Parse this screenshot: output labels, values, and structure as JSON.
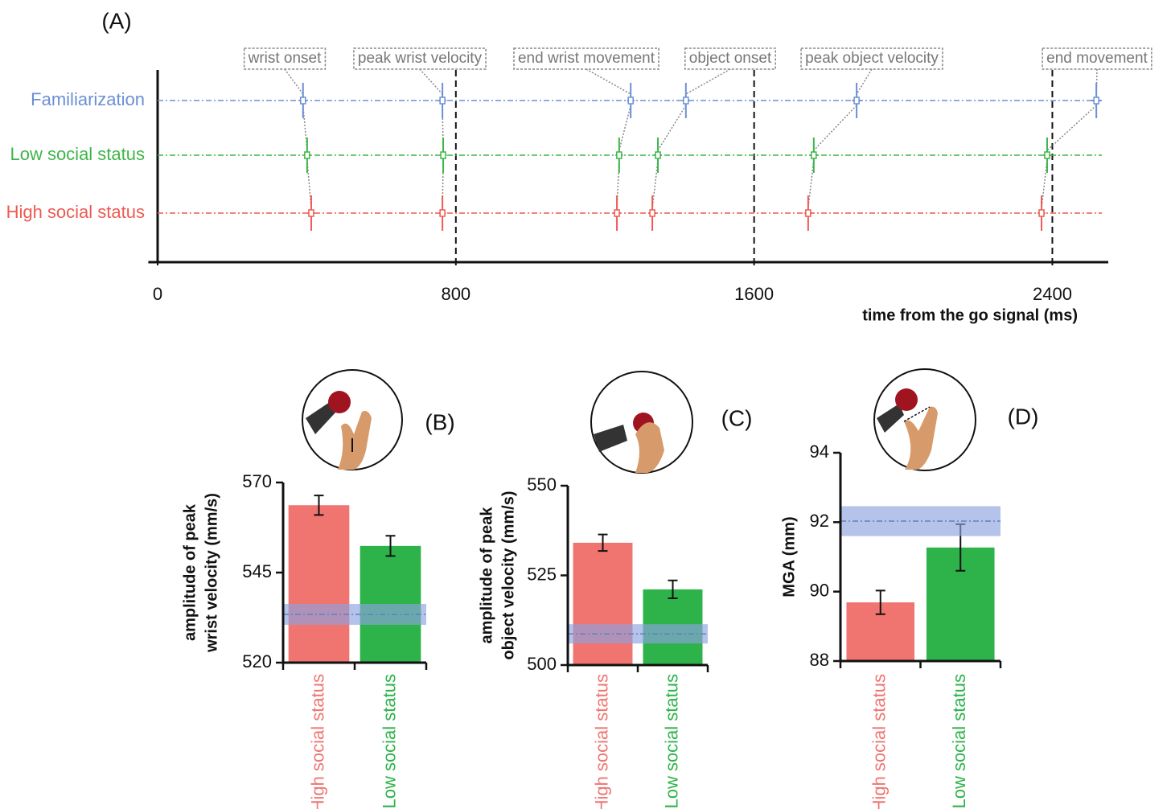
{
  "chart_data": [
    {
      "type": "timeline",
      "panel_label": "(A)",
      "events": [
        "wrist onset",
        "peak wrist velocity",
        "end wrist movement",
        "object onset",
        "peak object velocity",
        "end movement"
      ],
      "series": [
        {
          "name": "Familiarization",
          "color": "#6b8fd4",
          "values": [
            390,
            764,
            1269,
            1417,
            1875,
            2518
          ],
          "errors": [
            10,
            10,
            10,
            10,
            12,
            14
          ]
        },
        {
          "name": "Low social status",
          "color": "#3db548",
          "values": [
            401,
            766,
            1238,
            1342,
            1760,
            2386
          ],
          "errors": [
            9,
            9,
            10,
            10,
            10,
            10
          ]
        },
        {
          "name": "High social status",
          "color": "#ee5a52",
          "values": [
            412,
            764,
            1232,
            1327,
            1745,
            2371
          ],
          "errors": [
            9,
            9,
            10,
            10,
            10,
            10
          ]
        }
      ],
      "xlim": [
        -25,
        2550
      ],
      "xticks": [
        0,
        800,
        1600,
        2400
      ],
      "reference_lines": [
        800,
        1600,
        2400
      ],
      "x_label": "time from the go signal (ms)"
    },
    {
      "type": "bar",
      "panel_label": "(B)",
      "y_label": [
        "amplitude of peak",
        "wrist velocity (mm/s)"
      ],
      "categories": [
        "High social status",
        "Low social status"
      ],
      "values": [
        563.7,
        552.4
      ],
      "errors": [
        2.7,
        2.8
      ],
      "colors": [
        "#f07470",
        "#2db34a"
      ],
      "reference": {
        "value": 533.4,
        "error": 2.9,
        "color": "#8ea3e0"
      },
      "ylim": [
        520,
        570
      ],
      "yticks": [
        520,
        545,
        570
      ]
    },
    {
      "type": "bar",
      "panel_label": "(C)",
      "y_label": [
        "amplitude of peak",
        "object velocity (mm/s)"
      ],
      "categories": [
        "High social status",
        "Low social status"
      ],
      "values": [
        534.1,
        521.1
      ],
      "errors": [
        2.3,
        2.5
      ],
      "colors": [
        "#f07470",
        "#2db34a"
      ],
      "reference": {
        "value": 508.7,
        "error": 2.7,
        "color": "#8ea3e0"
      },
      "ylim": [
        500,
        550
      ],
      "yticks": [
        500,
        525,
        550
      ]
    },
    {
      "type": "bar",
      "panel_label": "(D)",
      "y_label": [
        "MGA (mm)"
      ],
      "categories": [
        "High social status",
        "Low social status"
      ],
      "values": [
        89.69,
        91.27
      ],
      "errors": [
        0.34,
        0.67
      ],
      "colors": [
        "#f07470",
        "#2db34a"
      ],
      "reference": {
        "value": 92.03,
        "error": 0.43,
        "color": "#8ea3e0"
      },
      "ylim": [
        88,
        94
      ],
      "yticks": [
        88,
        90,
        92,
        94
      ]
    }
  ]
}
